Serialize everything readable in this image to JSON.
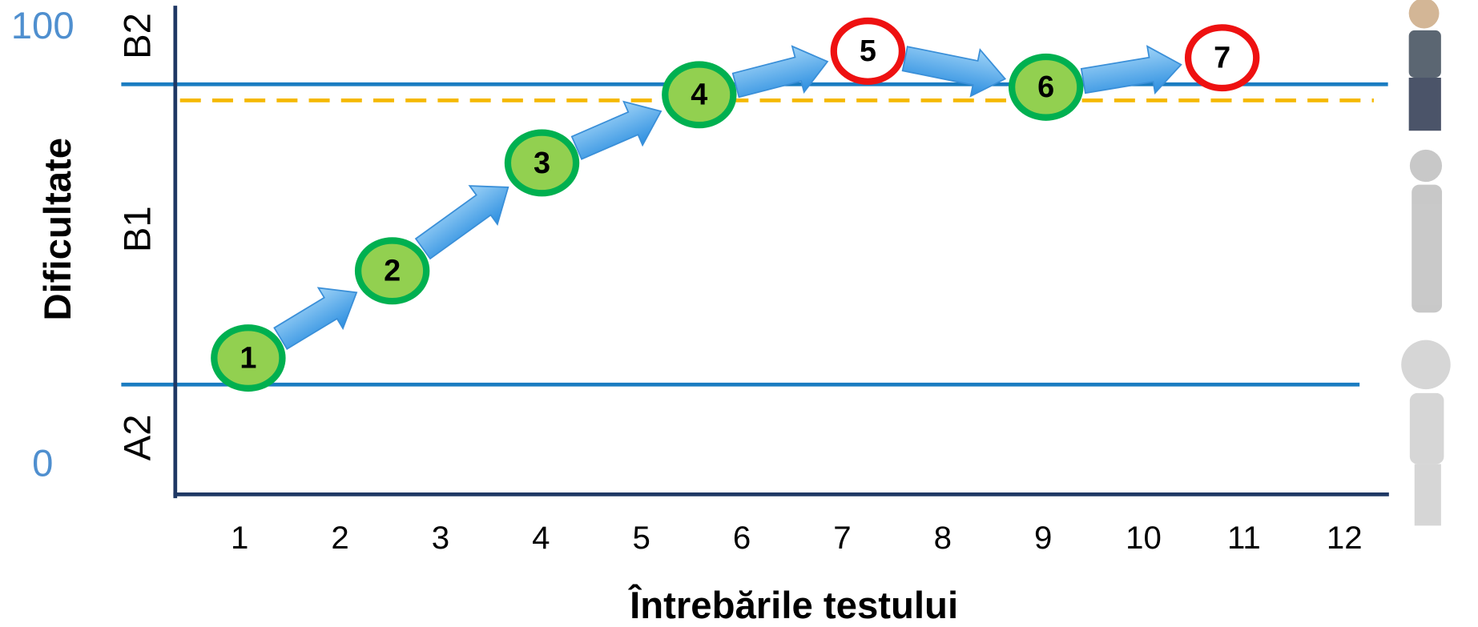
{
  "y_axis": {
    "title": "Dificultate",
    "max_label": "100",
    "min_label": "0",
    "levels": [
      "A2",
      "B1",
      "B2"
    ]
  },
  "x_axis": {
    "title": "Întrebările testului",
    "ticks": [
      "1",
      "2",
      "3",
      "4",
      "5",
      "6",
      "7",
      "8",
      "9",
      "10",
      "11",
      "12"
    ]
  },
  "nodes": [
    {
      "label": "1",
      "color": "green"
    },
    {
      "label": "2",
      "color": "green"
    },
    {
      "label": "3",
      "color": "green"
    },
    {
      "label": "4",
      "color": "green"
    },
    {
      "label": "5",
      "color": "red"
    },
    {
      "label": "6",
      "color": "green"
    },
    {
      "label": "7",
      "color": "red"
    }
  ]
}
